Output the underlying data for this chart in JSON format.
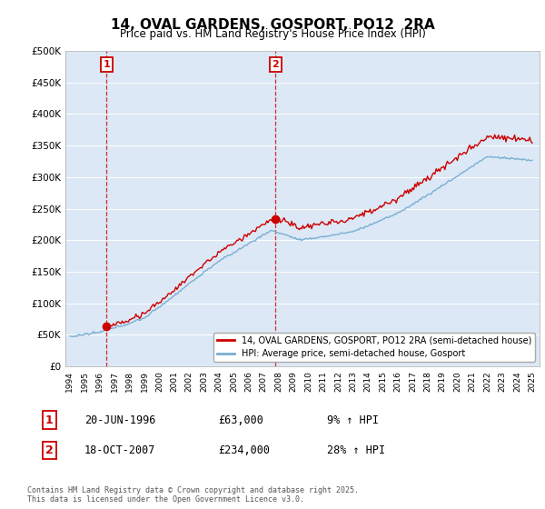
{
  "title": "14, OVAL GARDENS, GOSPORT, PO12  2RA",
  "subtitle": "Price paid vs. HM Land Registry's House Price Index (HPI)",
  "ylim": [
    0,
    500000
  ],
  "yticks": [
    0,
    50000,
    100000,
    150000,
    200000,
    250000,
    300000,
    350000,
    400000,
    450000,
    500000
  ],
  "sale1_year": 1996.47,
  "sale1_price": 63000,
  "sale2_year": 2007.8,
  "sale2_price": 234000,
  "line_color_property": "#cc0000",
  "line_color_hpi": "#7aafd4",
  "background_color": "#dce8f5",
  "legend_label_property": "14, OVAL GARDENS, GOSPORT, PO12 2RA (semi-detached house)",
  "legend_label_hpi": "HPI: Average price, semi-detached house, Gosport",
  "footnote": "Contains HM Land Registry data © Crown copyright and database right 2025.\nThis data is licensed under the Open Government Licence v3.0.",
  "table_row1": [
    "1",
    "20-JUN-1996",
    "£63,000",
    "9% ↑ HPI"
  ],
  "table_row2": [
    "2",
    "18-OCT-2007",
    "£234,000",
    "28% ↑ HPI"
  ]
}
